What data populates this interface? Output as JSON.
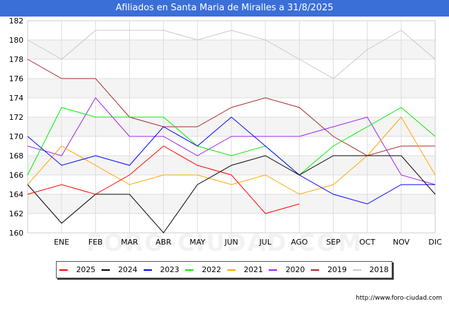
{
  "title": "Afiliados en Santa Maria de Miralles a 31/8/2025",
  "footer_url": "http://www.foro-ciudad.com",
  "watermark": "FORO-CIUDAD.COM",
  "chart_data": {
    "type": "line",
    "title": "Afiliados en Santa Maria de Miralles a 31/8/2025",
    "xlabel": "",
    "ylabel": "",
    "categories": [
      "DIC",
      "ENE",
      "FEB",
      "MAR",
      "ABR",
      "MAY",
      "JUN",
      "JUL",
      "AGO",
      "SEP",
      "OCT",
      "NOV",
      "DIC"
    ],
    "x_tick_labels": [
      "",
      "ENE",
      "FEB",
      "MAR",
      "ABR",
      "MAY",
      "JUN",
      "JUL",
      "AGO",
      "SEP",
      "OCT",
      "NOV",
      "DIC"
    ],
    "ylim": [
      160,
      182
    ],
    "yticks": [
      160,
      162,
      164,
      166,
      168,
      170,
      172,
      174,
      176,
      178,
      180,
      182
    ],
    "grid": true,
    "legend_position": "bottom",
    "series": [
      {
        "name": "2025",
        "color": "#ff0000",
        "values": [
          164,
          165,
          164,
          166,
          169,
          167,
          166,
          162,
          163,
          null,
          null,
          null,
          null
        ]
      },
      {
        "name": "2024",
        "color": "#000000",
        "values": [
          165,
          161,
          164,
          164,
          160,
          165,
          167,
          168,
          166,
          168,
          168,
          168,
          164
        ]
      },
      {
        "name": "2023",
        "color": "#0000ff",
        "values": [
          170,
          167,
          168,
          167,
          171,
          169,
          172,
          169,
          166,
          164,
          163,
          165,
          165
        ]
      },
      {
        "name": "2022",
        "color": "#00ee00",
        "values": [
          166,
          173,
          172,
          172,
          172,
          169,
          168,
          169,
          166,
          169,
          171,
          173,
          170
        ]
      },
      {
        "name": "2021",
        "color": "#ffa500",
        "values": [
          165,
          169,
          167,
          165,
          166,
          166,
          165,
          166,
          164,
          165,
          168,
          172,
          166
        ]
      },
      {
        "name": "2020",
        "color": "#a020f0",
        "values": [
          169,
          168,
          174,
          170,
          170,
          168,
          170,
          170,
          170,
          171,
          172,
          166,
          165
        ]
      },
      {
        "name": "2019",
        "color": "#a52a2a",
        "values": [
          178,
          176,
          176,
          172,
          171,
          171,
          173,
          174,
          173,
          170,
          168,
          169,
          169
        ]
      },
      {
        "name": "2018",
        "color": "#c8c8c8",
        "values": [
          180,
          178,
          181,
          181,
          181,
          180,
          181,
          180,
          178,
          176,
          179,
          181,
          178
        ]
      }
    ]
  }
}
